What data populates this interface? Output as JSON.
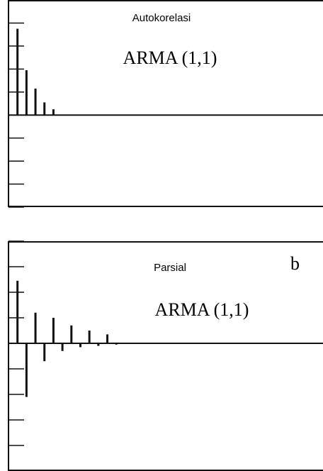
{
  "chart_data": [
    {
      "type": "bar",
      "title": "Autokorelasi",
      "annotation": "ARMA (1,1)",
      "x": [
        1,
        2,
        3,
        4,
        5
      ],
      "values": [
        0.75,
        0.39,
        0.23,
        0.11,
        0.05
      ],
      "color": "#111111",
      "xlim": [
        0,
        35
      ],
      "ylim": [
        -0.8,
        1.0
      ],
      "yticks": [
        -0.8,
        -0.6,
        -0.4,
        -0.2,
        0,
        0.2,
        0.4,
        0.6,
        0.8,
        1.0
      ]
    },
    {
      "type": "bar",
      "title": "Parsial",
      "label": "b",
      "annotation": "ARMA (1,1)",
      "x": [
        1,
        2,
        3,
        4,
        5,
        6,
        7,
        8,
        9,
        10,
        11,
        12
      ],
      "values": [
        0.49,
        -0.42,
        0.24,
        -0.14,
        0.2,
        -0.06,
        0.14,
        -0.03,
        0.1,
        -0.02,
        0.07,
        -0.01
      ],
      "color": "#111111",
      "xlim": [
        0,
        35
      ],
      "ylim": [
        -1.0,
        0.8
      ],
      "yticks": [
        -1.0,
        -0.8,
        -0.6,
        -0.4,
        -0.2,
        0,
        0.2,
        0.4,
        0.6,
        0.8
      ]
    }
  ]
}
